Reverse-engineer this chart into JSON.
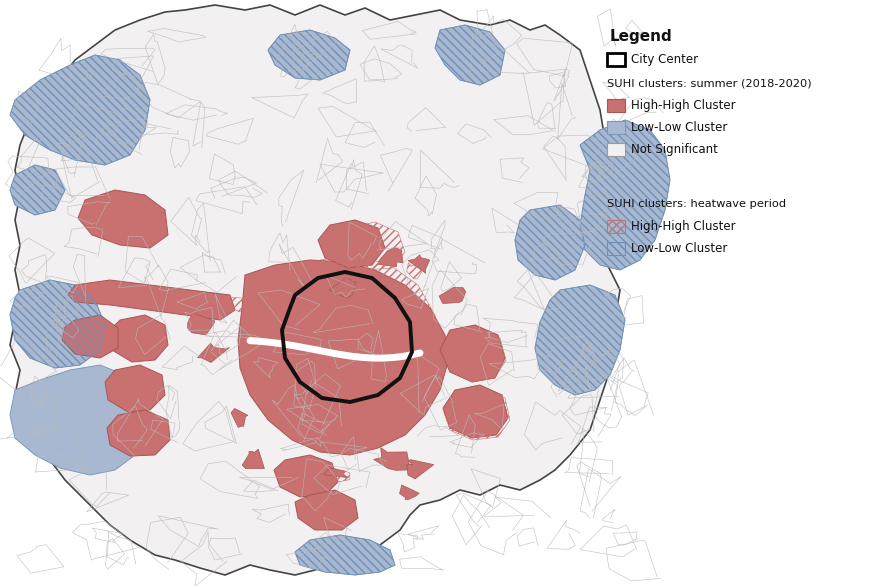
{
  "background_color": "#ffffff",
  "colors": {
    "high_high_fill": "#C97070",
    "low_low_fill": "#A8B8D0",
    "not_significant_fill": "#F2F0F0",
    "outer_edge": "#444444",
    "inner_edge": "#bbbbbb",
    "city_center_edge": "#111111",
    "heatwave_high_color": "#C97070",
    "heatwave_low_color": "#7090B8"
  },
  "legend": {
    "title": "Legend",
    "city_center": "City Center",
    "suhi_summer": "SUHI clusters: summer (2018-2020)",
    "high_high": "High-High Cluster",
    "low_low": "Low-Low Cluster",
    "not_sig": "Not Significant",
    "suhi_heatwave": "SUHI clusters: heatwave period",
    "hw_high": "High-High Cluster",
    "hw_low": "Low-Low Cluster"
  }
}
